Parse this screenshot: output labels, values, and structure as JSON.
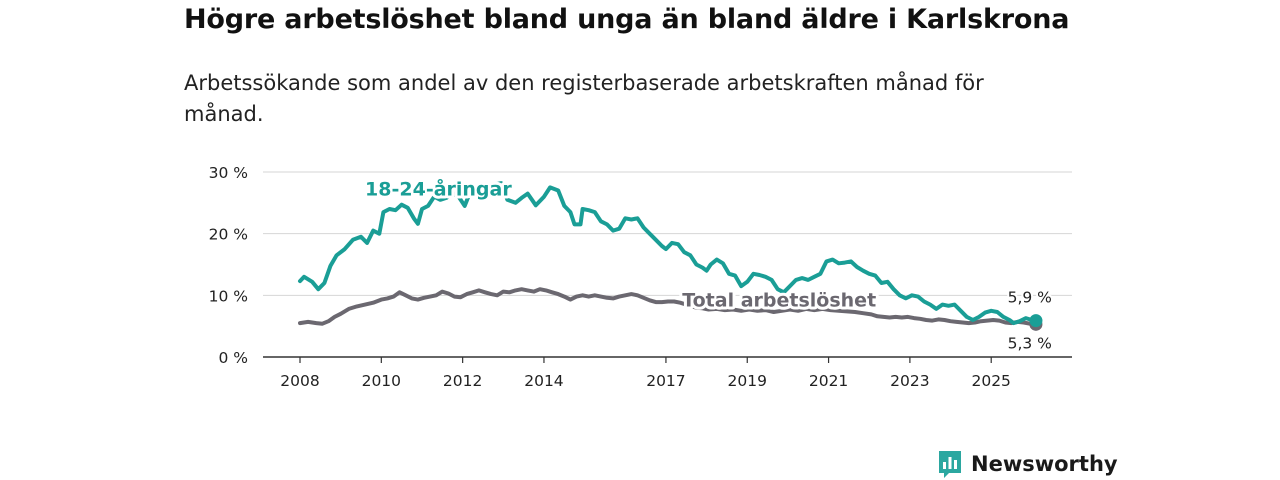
{
  "title": "Högre arbetslöshet bland unga än bland äldre i Karlskrona",
  "subtitle": "Arbetssökande som andel av den registerbaserade arbetskraften månad för månad.",
  "brand": {
    "name": "Newsworthy",
    "color": "#2ba7a0",
    "icon": "bar-chart-speech-icon"
  },
  "chart_data": {
    "type": "line",
    "title": "Högre arbetslöshet bland unga än bland äldre i Karlskrona",
    "xlabel": "",
    "ylabel": "",
    "xlim": [
      2008,
      2026.2
    ],
    "ylim": [
      0,
      30
    ],
    "grid": true,
    "x_ticks": [
      2008,
      2010,
      2012,
      2014,
      2017,
      2019,
      2021,
      2023,
      2025
    ],
    "x_tick_labels": [
      "2008",
      "2010",
      "2012",
      "2014",
      "2017",
      "2019",
      "2021",
      "2023",
      "2025"
    ],
    "y_ticks": [
      0,
      10,
      20,
      30
    ],
    "y_tick_labels": [
      "0 %",
      "10 %",
      "20 %",
      "30 %"
    ],
    "series": [
      {
        "name": "18-24-åringar",
        "label": "18-24-åringar",
        "color": "#1a9e96",
        "label_at": [
          2009.6,
          26.2
        ],
        "end_value": 5.9,
        "end_label": "5,9 %",
        "points": [
          [
            2008.0,
            12.3
          ],
          [
            2008.1,
            13.0
          ],
          [
            2008.3,
            12.2
          ],
          [
            2008.45,
            11.0
          ],
          [
            2008.6,
            12.0
          ],
          [
            2008.75,
            14.8
          ],
          [
            2008.9,
            16.5
          ],
          [
            2009.1,
            17.5
          ],
          [
            2009.3,
            19.0
          ],
          [
            2009.5,
            19.5
          ],
          [
            2009.65,
            18.5
          ],
          [
            2009.8,
            20.5
          ],
          [
            2009.95,
            20.0
          ],
          [
            2010.05,
            23.5
          ],
          [
            2010.2,
            24.0
          ],
          [
            2010.35,
            23.8
          ],
          [
            2010.5,
            24.7
          ],
          [
            2010.65,
            24.2
          ],
          [
            2010.8,
            22.5
          ],
          [
            2010.9,
            21.6
          ],
          [
            2011.0,
            24.0
          ],
          [
            2011.15,
            24.5
          ],
          [
            2011.3,
            26.0
          ],
          [
            2011.45,
            25.5
          ],
          [
            2011.6,
            25.8
          ],
          [
            2011.75,
            26.6
          ],
          [
            2011.9,
            26.0
          ],
          [
            2012.05,
            24.5
          ],
          [
            2012.2,
            27.0
          ],
          [
            2012.35,
            27.5
          ],
          [
            2012.5,
            27.0
          ],
          [
            2012.65,
            27.8
          ],
          [
            2012.8,
            28.0
          ],
          [
            2012.95,
            28.2
          ],
          [
            2013.1,
            25.5
          ],
          [
            2013.3,
            25.0
          ],
          [
            2013.45,
            25.8
          ],
          [
            2013.6,
            26.5
          ],
          [
            2013.8,
            24.6
          ],
          [
            2014.0,
            26.0
          ],
          [
            2014.15,
            27.5
          ],
          [
            2014.35,
            27.0
          ],
          [
            2014.5,
            24.5
          ],
          [
            2014.65,
            23.5
          ],
          [
            2014.75,
            21.5
          ],
          [
            2014.9,
            21.5
          ],
          [
            2014.95,
            24.0
          ],
          [
            2015.1,
            23.8
          ],
          [
            2015.25,
            23.5
          ],
          [
            2015.4,
            22.0
          ],
          [
            2015.55,
            21.5
          ],
          [
            2015.7,
            20.5
          ],
          [
            2015.85,
            20.8
          ],
          [
            2016.0,
            22.5
          ],
          [
            2016.15,
            22.3
          ],
          [
            2016.3,
            22.5
          ],
          [
            2016.45,
            21.0
          ],
          [
            2016.6,
            20.0
          ],
          [
            2016.75,
            19.0
          ],
          [
            2016.9,
            18.0
          ],
          [
            2017.0,
            17.5
          ],
          [
            2017.15,
            18.5
          ],
          [
            2017.3,
            18.3
          ],
          [
            2017.45,
            17.0
          ],
          [
            2017.6,
            16.5
          ],
          [
            2017.75,
            15.0
          ],
          [
            2017.9,
            14.5
          ],
          [
            2018.0,
            14.0
          ],
          [
            2018.1,
            15.0
          ],
          [
            2018.25,
            15.8
          ],
          [
            2018.4,
            15.2
          ],
          [
            2018.55,
            13.5
          ],
          [
            2018.7,
            13.2
          ],
          [
            2018.85,
            11.5
          ],
          [
            2019.0,
            12.2
          ],
          [
            2019.15,
            13.5
          ],
          [
            2019.3,
            13.3
          ],
          [
            2019.45,
            13.0
          ],
          [
            2019.6,
            12.5
          ],
          [
            2019.75,
            11.0
          ],
          [
            2019.9,
            10.5
          ],
          [
            2020.05,
            11.5
          ],
          [
            2020.2,
            12.5
          ],
          [
            2020.35,
            12.8
          ],
          [
            2020.5,
            12.5
          ],
          [
            2020.65,
            13.0
          ],
          [
            2020.8,
            13.5
          ],
          [
            2020.95,
            15.5
          ],
          [
            2021.1,
            15.8
          ],
          [
            2021.25,
            15.2
          ],
          [
            2021.4,
            15.3
          ],
          [
            2021.55,
            15.5
          ],
          [
            2021.7,
            14.6
          ],
          [
            2021.85,
            14.0
          ],
          [
            2022.0,
            13.5
          ],
          [
            2022.15,
            13.2
          ],
          [
            2022.3,
            12.0
          ],
          [
            2022.45,
            12.2
          ],
          [
            2022.6,
            11.0
          ],
          [
            2022.75,
            10.0
          ],
          [
            2022.9,
            9.5
          ],
          [
            2023.05,
            10.0
          ],
          [
            2023.2,
            9.8
          ],
          [
            2023.35,
            9.0
          ],
          [
            2023.5,
            8.5
          ],
          [
            2023.65,
            7.8
          ],
          [
            2023.8,
            8.5
          ],
          [
            2023.95,
            8.3
          ],
          [
            2024.1,
            8.5
          ],
          [
            2024.25,
            7.5
          ],
          [
            2024.4,
            6.5
          ],
          [
            2024.55,
            6.0
          ],
          [
            2024.7,
            6.5
          ],
          [
            2024.85,
            7.2
          ],
          [
            2025.0,
            7.5
          ],
          [
            2025.15,
            7.3
          ],
          [
            2025.3,
            6.5
          ],
          [
            2025.45,
            6.0
          ],
          [
            2025.55,
            5.5
          ],
          [
            2025.7,
            5.8
          ],
          [
            2025.85,
            6.3
          ],
          [
            2026.0,
            6.0
          ],
          [
            2026.1,
            5.9
          ]
        ]
      },
      {
        "name": "Total arbetslöshet",
        "label": "Total arbetslöshet",
        "color": "#6b6870",
        "label_at": [
          2017.4,
          8.2
        ],
        "end_value": 5.3,
        "end_label": "5,3 %",
        "points": [
          [
            2008.0,
            5.5
          ],
          [
            2008.2,
            5.7
          ],
          [
            2008.4,
            5.5
          ],
          [
            2008.55,
            5.4
          ],
          [
            2008.7,
            5.8
          ],
          [
            2008.85,
            6.5
          ],
          [
            2009.0,
            7.0
          ],
          [
            2009.2,
            7.8
          ],
          [
            2009.4,
            8.2
          ],
          [
            2009.6,
            8.5
          ],
          [
            2009.8,
            8.8
          ],
          [
            2010.0,
            9.3
          ],
          [
            2010.15,
            9.5
          ],
          [
            2010.3,
            9.8
          ],
          [
            2010.45,
            10.5
          ],
          [
            2010.6,
            10.0
          ],
          [
            2010.75,
            9.5
          ],
          [
            2010.9,
            9.3
          ],
          [
            2011.05,
            9.6
          ],
          [
            2011.2,
            9.8
          ],
          [
            2011.35,
            10.0
          ],
          [
            2011.5,
            10.6
          ],
          [
            2011.65,
            10.3
          ],
          [
            2011.8,
            9.8
          ],
          [
            2011.95,
            9.7
          ],
          [
            2012.1,
            10.2
          ],
          [
            2012.25,
            10.5
          ],
          [
            2012.4,
            10.8
          ],
          [
            2012.55,
            10.5
          ],
          [
            2012.7,
            10.2
          ],
          [
            2012.85,
            10.0
          ],
          [
            2013.0,
            10.6
          ],
          [
            2013.15,
            10.5
          ],
          [
            2013.3,
            10.8
          ],
          [
            2013.45,
            11.0
          ],
          [
            2013.6,
            10.8
          ],
          [
            2013.75,
            10.6
          ],
          [
            2013.9,
            11.0
          ],
          [
            2014.05,
            10.8
          ],
          [
            2014.2,
            10.5
          ],
          [
            2014.35,
            10.2
          ],
          [
            2014.5,
            9.8
          ],
          [
            2014.65,
            9.3
          ],
          [
            2014.8,
            9.8
          ],
          [
            2014.95,
            10.0
          ],
          [
            2015.1,
            9.8
          ],
          [
            2015.25,
            10.0
          ],
          [
            2015.4,
            9.8
          ],
          [
            2015.55,
            9.6
          ],
          [
            2015.7,
            9.5
          ],
          [
            2015.85,
            9.8
          ],
          [
            2016.0,
            10.0
          ],
          [
            2016.15,
            10.2
          ],
          [
            2016.3,
            10.0
          ],
          [
            2016.45,
            9.6
          ],
          [
            2016.6,
            9.2
          ],
          [
            2016.75,
            8.9
          ],
          [
            2016.9,
            8.9
          ],
          [
            2017.05,
            9.0
          ],
          [
            2017.2,
            9.0
          ],
          [
            2017.35,
            8.8
          ],
          [
            2017.5,
            8.5
          ],
          [
            2017.6,
            8.3
          ],
          [
            2017.75,
            8.0
          ],
          [
            2017.9,
            7.9
          ],
          [
            2018.05,
            7.7
          ],
          [
            2018.25,
            7.8
          ],
          [
            2018.45,
            7.6
          ],
          [
            2018.65,
            7.7
          ],
          [
            2018.85,
            7.5
          ],
          [
            2019.05,
            7.7
          ],
          [
            2019.25,
            7.5
          ],
          [
            2019.45,
            7.6
          ],
          [
            2019.65,
            7.3
          ],
          [
            2019.85,
            7.5
          ],
          [
            2020.05,
            7.7
          ],
          [
            2020.25,
            7.5
          ],
          [
            2020.45,
            7.8
          ],
          [
            2020.65,
            7.6
          ],
          [
            2020.85,
            7.8
          ],
          [
            2021.05,
            7.6
          ],
          [
            2021.25,
            7.5
          ],
          [
            2021.45,
            7.4
          ],
          [
            2021.65,
            7.3
          ],
          [
            2021.85,
            7.1
          ],
          [
            2022.05,
            6.9
          ],
          [
            2022.2,
            6.6
          ],
          [
            2022.35,
            6.5
          ],
          [
            2022.5,
            6.4
          ],
          [
            2022.65,
            6.5
          ],
          [
            2022.8,
            6.4
          ],
          [
            2022.95,
            6.5
          ],
          [
            2023.1,
            6.3
          ],
          [
            2023.25,
            6.2
          ],
          [
            2023.4,
            6.0
          ],
          [
            2023.55,
            5.9
          ],
          [
            2023.7,
            6.1
          ],
          [
            2023.85,
            6.0
          ],
          [
            2024.0,
            5.8
          ],
          [
            2024.15,
            5.7
          ],
          [
            2024.3,
            5.6
          ],
          [
            2024.45,
            5.5
          ],
          [
            2024.6,
            5.6
          ],
          [
            2024.75,
            5.8
          ],
          [
            2024.9,
            5.9
          ],
          [
            2025.05,
            6.0
          ],
          [
            2025.2,
            5.9
          ],
          [
            2025.35,
            5.6
          ],
          [
            2025.5,
            5.5
          ],
          [
            2025.65,
            5.7
          ],
          [
            2025.8,
            5.6
          ],
          [
            2025.95,
            5.4
          ],
          [
            2026.1,
            5.3
          ]
        ]
      }
    ]
  }
}
